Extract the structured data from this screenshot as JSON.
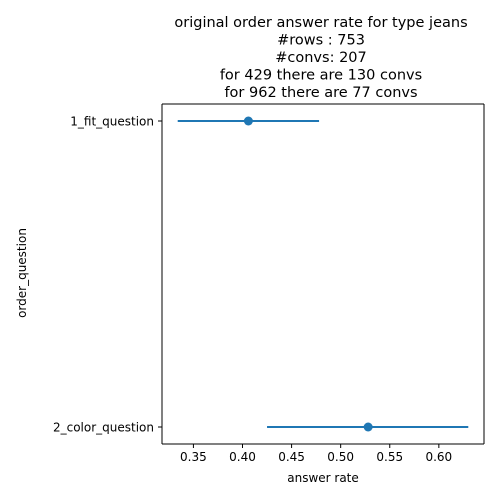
{
  "chart_data": {
    "type": "scatter",
    "title": [
      "original order answer rate for type jeans",
      "#rows : 753",
      "#convs: 207",
      "for 429 there are 130 convs",
      "for 962 there are 77 convs"
    ],
    "xlabel": "answer rate",
    "ylabel": "order_question",
    "categories": [
      "1_fit_question",
      "2_color_question"
    ],
    "series": [
      {
        "values": [
          0.406,
          0.528
        ],
        "lower": [
          0.334,
          0.425
        ],
        "upper": [
          0.478,
          0.63
        ]
      }
    ],
    "xlim": [
      0.318,
      0.646
    ],
    "xticks": [
      0.35,
      0.4,
      0.45,
      0.5,
      0.55,
      0.6
    ],
    "xtick_labels": [
      "0.35",
      "0.40",
      "0.45",
      "0.50",
      "0.55",
      "0.60"
    ],
    "grid": false,
    "colors": {
      "series": "#1f77b4",
      "axis": "#000000"
    }
  }
}
